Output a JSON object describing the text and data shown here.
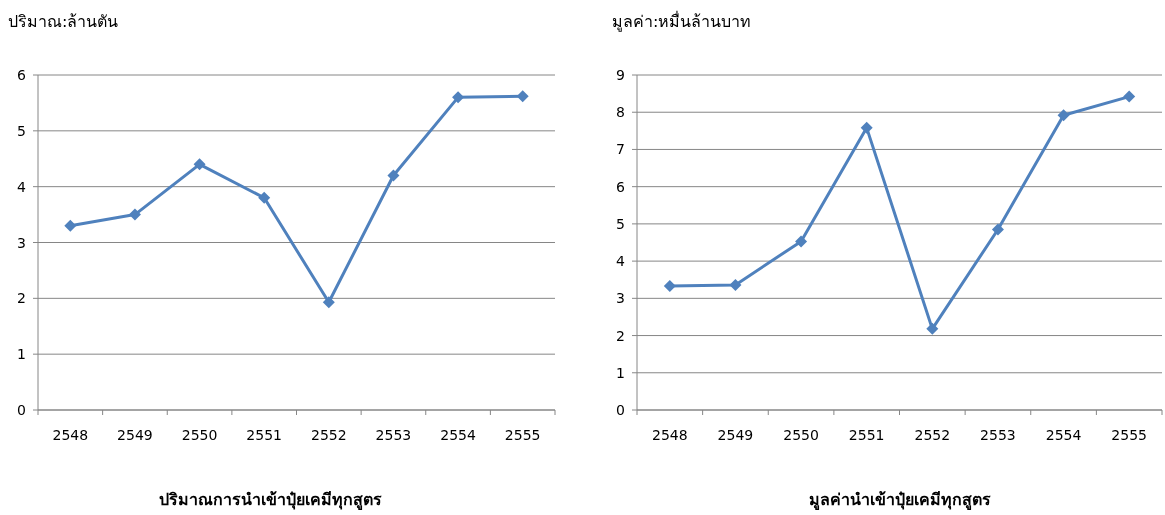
{
  "chart_data": [
    {
      "type": "line",
      "ylabel": "ปริมาณ:ล้านตัน",
      "xlabel": "ปริมาณการนำเข้าปุ๋ยเคมีทุกสูตร",
      "categories": [
        "2548",
        "2549",
        "2550",
        "2551",
        "2552",
        "2553",
        "2554",
        "2555"
      ],
      "series": [
        {
          "color": "#4f81bd",
          "values": [
            3.3,
            3.5,
            4.4,
            3.8,
            1.93,
            4.2,
            5.6,
            5.62
          ]
        }
      ],
      "ylim": [
        0,
        6
      ],
      "yticks": [
        0,
        1,
        2,
        3,
        4,
        5,
        6
      ],
      "grid": "y",
      "marker": "diamond",
      "line_style": "solid"
    },
    {
      "type": "line",
      "ylabel": "มูลค่า:หมื่นล้านบาท",
      "xlabel": "มูลค่านำเข้าปุ๋ยเคมีทุกสูตร",
      "categories": [
        "2548",
        "2549",
        "2550",
        "2551",
        "2552",
        "2553",
        "2554",
        "2555"
      ],
      "series": [
        {
          "color": "#4f81bd",
          "values": [
            3.33,
            3.36,
            4.53,
            7.58,
            2.18,
            4.85,
            7.92,
            8.42
          ]
        }
      ],
      "ylim": [
        0,
        9
      ],
      "yticks": [
        0,
        1,
        2,
        3,
        4,
        5,
        6,
        7,
        8,
        9
      ],
      "grid": "y",
      "marker": "diamond",
      "line_style": "solid"
    }
  ]
}
